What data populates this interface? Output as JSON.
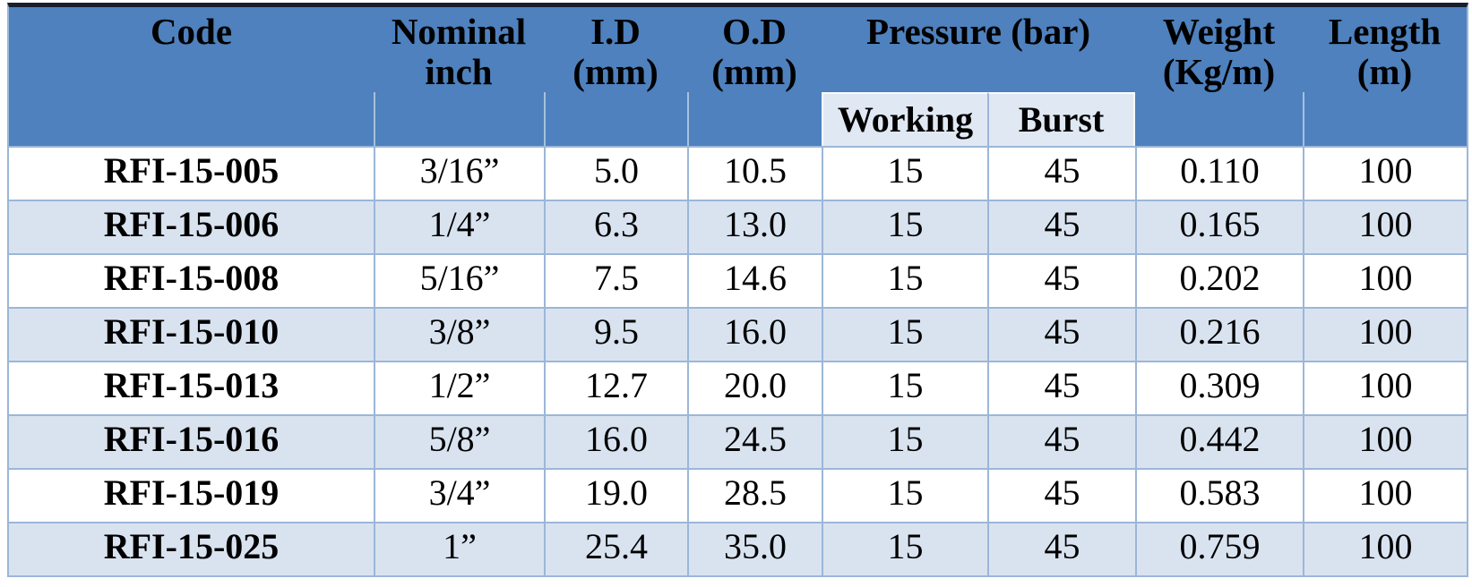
{
  "colors": {
    "header_bg": "#4E81BD",
    "subheader_bg": "#E0E8F3",
    "stripe_bg": "#D9E3F0",
    "grid_line": "#9CB6D8",
    "top_border": "#151F2E",
    "text": "#000000",
    "row_bg": "#FFFFFF"
  },
  "table": {
    "headers": {
      "code": "Code",
      "nominal": "Nominal inch",
      "id": "I.D (mm)",
      "od": "O.D (mm)",
      "pressure": "Pressure (bar)",
      "working": "Working",
      "burst": "Burst",
      "weight": "Weight (Kg/m)",
      "length": "Length (m)"
    },
    "column_names": [
      "cell-code",
      "cell-nominal-inch",
      "cell-id-mm",
      "cell-od-mm",
      "cell-working-pressure",
      "cell-burst-pressure",
      "cell-weight-kg-m",
      "cell-length-m"
    ],
    "rows": [
      [
        "RFI-15-005",
        "3/16”",
        "5.0",
        "10.5",
        "15",
        "45",
        "0.110",
        "100"
      ],
      [
        "RFI-15-006",
        "1/4”",
        "6.3",
        "13.0",
        "15",
        "45",
        "0.165",
        "100"
      ],
      [
        "RFI-15-008",
        "5/16”",
        "7.5",
        "14.6",
        "15",
        "45",
        "0.202",
        "100"
      ],
      [
        "RFI-15-010",
        "3/8”",
        "9.5",
        "16.0",
        "15",
        "45",
        "0.216",
        "100"
      ],
      [
        "RFI-15-013",
        "1/2”",
        "12.7",
        "20.0",
        "15",
        "45",
        "0.309",
        "100"
      ],
      [
        "RFI-15-016",
        "5/8”",
        "16.0",
        "24.5",
        "15",
        "45",
        "0.442",
        "100"
      ],
      [
        "RFI-15-019",
        "3/4”",
        "19.0",
        "28.5",
        "15",
        "45",
        "0.583",
        "100"
      ],
      [
        "RFI-15-025",
        "1”",
        "25.4",
        "35.0",
        "15",
        "45",
        "0.759",
        "100"
      ]
    ]
  }
}
